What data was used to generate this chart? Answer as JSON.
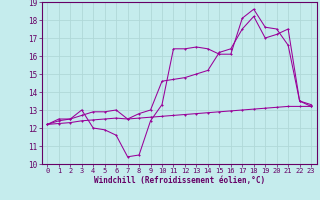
{
  "xlabel": "Windchill (Refroidissement éolien,°C)",
  "xlim": [
    -0.5,
    23.5
  ],
  "ylim": [
    10,
    19
  ],
  "xticks": [
    0,
    1,
    2,
    3,
    4,
    5,
    6,
    7,
    8,
    9,
    10,
    11,
    12,
    13,
    14,
    15,
    16,
    17,
    18,
    19,
    20,
    21,
    22,
    23
  ],
  "yticks": [
    10,
    11,
    12,
    13,
    14,
    15,
    16,
    17,
    18,
    19
  ],
  "bg_color": "#c5eced",
  "line_color": "#990099",
  "grid_color": "#b0d8d8",
  "line1_x": [
    0,
    1,
    2,
    3,
    4,
    5,
    6,
    7,
    8,
    9,
    10,
    11,
    12,
    13,
    14,
    15,
    16,
    17,
    18,
    19,
    20,
    21,
    22,
    23
  ],
  "line1_y": [
    12.2,
    12.5,
    12.5,
    13.0,
    12.0,
    11.9,
    11.6,
    10.4,
    10.5,
    12.4,
    13.3,
    16.4,
    16.4,
    16.5,
    16.4,
    16.1,
    16.1,
    18.1,
    18.6,
    17.6,
    17.5,
    16.6,
    13.5,
    13.2
  ],
  "line2_x": [
    0,
    1,
    2,
    3,
    4,
    5,
    6,
    7,
    8,
    9,
    10,
    11,
    12,
    13,
    14,
    15,
    16,
    17,
    18,
    19,
    20,
    21,
    22,
    23
  ],
  "line2_y": [
    12.2,
    12.4,
    12.5,
    12.7,
    12.9,
    12.9,
    13.0,
    12.5,
    12.8,
    13.0,
    14.6,
    14.7,
    14.8,
    15.0,
    15.2,
    16.2,
    16.4,
    17.5,
    18.2,
    17.0,
    17.2,
    17.5,
    13.5,
    13.3
  ],
  "line3_x": [
    0,
    1,
    2,
    3,
    4,
    5,
    6,
    7,
    8,
    9,
    10,
    11,
    12,
    13,
    14,
    15,
    16,
    17,
    18,
    19,
    20,
    21,
    22,
    23
  ],
  "line3_y": [
    12.2,
    12.25,
    12.3,
    12.4,
    12.45,
    12.5,
    12.55,
    12.5,
    12.55,
    12.6,
    12.65,
    12.7,
    12.75,
    12.8,
    12.85,
    12.9,
    12.95,
    13.0,
    13.05,
    13.1,
    13.15,
    13.2,
    13.2,
    13.2
  ],
  "tick_color": "#660066",
  "tick_fontsize": 5,
  "xlabel_fontsize": 5.5
}
